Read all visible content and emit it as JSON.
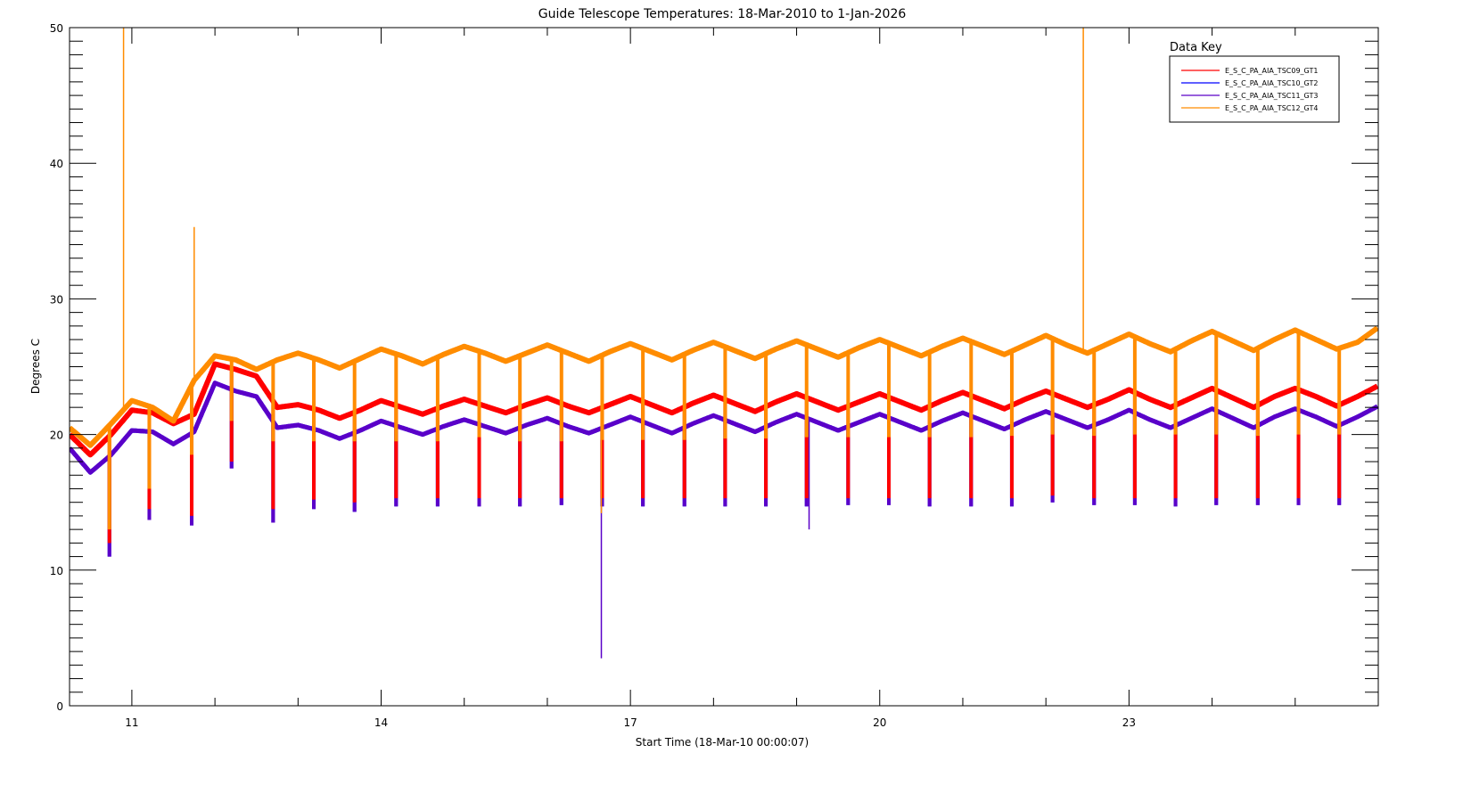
{
  "chart_data": {
    "type": "line",
    "title": "Guide Telescope Temperatures: 18-Mar-2010 to 1-Jan-2026",
    "xlabel": "Start Time (18-Mar-10 00:00:07)",
    "ylabel": "Degrees C",
    "xlim": [
      10.25,
      26.0
    ],
    "ylim": [
      0,
      50
    ],
    "x_ticks": [
      11,
      14,
      17,
      20,
      23
    ],
    "x_tick_labels": [
      "11",
      "14",
      "17",
      "20",
      "23"
    ],
    "y_ticks": [
      0,
      10,
      20,
      30,
      40,
      50
    ],
    "y_tick_labels": [
      "0",
      "10",
      "20",
      "30",
      "40",
      "50"
    ],
    "grid": false,
    "legend": {
      "title": "Data Key",
      "placement": "top-right"
    },
    "x": [
      10.25,
      10.5,
      10.75,
      11.0,
      11.25,
      11.5,
      11.75,
      12.0,
      12.25,
      12.5,
      12.75,
      13.0,
      13.25,
      13.5,
      13.75,
      14.0,
      14.25,
      14.5,
      14.75,
      15.0,
      15.25,
      15.5,
      15.75,
      16.0,
      16.25,
      16.5,
      16.75,
      17.0,
      17.25,
      17.5,
      17.75,
      18.0,
      18.25,
      18.5,
      18.75,
      19.0,
      19.25,
      19.5,
      19.75,
      20.0,
      20.25,
      20.5,
      20.75,
      21.0,
      21.25,
      21.5,
      21.75,
      22.0,
      22.25,
      22.5,
      22.75,
      23.0,
      23.25,
      23.5,
      23.75,
      24.0,
      24.25,
      24.5,
      24.75,
      25.0,
      25.25,
      25.5,
      25.75,
      26.0
    ],
    "series": [
      {
        "name": "E_S_C_PA_AIA_TSC10_GT2",
        "color": "#0000ff",
        "values": [
          19.0,
          17.2,
          18.5,
          20.3,
          20.2,
          19.3,
          20.2,
          23.8,
          23.2,
          22.8,
          20.5,
          20.7,
          20.3,
          19.7,
          20.3,
          21.0,
          20.5,
          20.0,
          20.6,
          21.1,
          20.6,
          20.1,
          20.7,
          21.2,
          20.6,
          20.1,
          20.7,
          21.3,
          20.7,
          20.1,
          20.8,
          21.4,
          20.8,
          20.2,
          20.9,
          21.5,
          20.9,
          20.3,
          20.9,
          21.5,
          20.9,
          20.3,
          21.0,
          21.6,
          21.0,
          20.4,
          21.1,
          21.7,
          21.1,
          20.5,
          21.1,
          21.8,
          21.1,
          20.5,
          21.2,
          21.9,
          21.2,
          20.5,
          21.3,
          21.9,
          21.3,
          20.6,
          21.3,
          22.1
        ]
      },
      {
        "name": "E_S_C_PA_AIA_TSC11_GT3",
        "color": "#5a00c8",
        "values": [
          19.0,
          17.2,
          18.5,
          20.3,
          20.2,
          19.3,
          20.2,
          23.8,
          23.2,
          22.8,
          20.5,
          20.7,
          20.3,
          19.7,
          20.3,
          21.0,
          20.5,
          20.0,
          20.6,
          21.1,
          20.6,
          20.1,
          20.7,
          21.2,
          20.6,
          20.1,
          20.7,
          21.3,
          20.7,
          20.1,
          20.8,
          21.4,
          20.8,
          20.2,
          20.9,
          21.5,
          20.9,
          20.3,
          20.9,
          21.5,
          20.9,
          20.3,
          21.0,
          21.6,
          21.0,
          20.4,
          21.1,
          21.7,
          21.1,
          20.5,
          21.1,
          21.8,
          21.1,
          20.5,
          21.2,
          21.9,
          21.2,
          20.5,
          21.3,
          21.9,
          21.3,
          20.6,
          21.3,
          22.1
        ]
      },
      {
        "name": "E_S_C_PA_AIA_TSC09_GT1",
        "color": "#ff0000",
        "values": [
          20.0,
          18.5,
          20.0,
          21.8,
          21.6,
          20.8,
          21.5,
          25.2,
          24.8,
          24.3,
          22.0,
          22.2,
          21.8,
          21.2,
          21.8,
          22.5,
          22.0,
          21.5,
          22.1,
          22.6,
          22.1,
          21.6,
          22.2,
          22.7,
          22.1,
          21.6,
          22.2,
          22.8,
          22.2,
          21.6,
          22.3,
          22.9,
          22.3,
          21.7,
          22.4,
          23.0,
          22.4,
          21.8,
          22.4,
          23.0,
          22.4,
          21.8,
          22.5,
          23.1,
          22.5,
          21.9,
          22.6,
          23.2,
          22.6,
          22.0,
          22.6,
          23.3,
          22.6,
          22.0,
          22.7,
          23.4,
          22.7,
          22.0,
          22.8,
          23.4,
          22.8,
          22.1,
          22.8,
          23.6
        ]
      },
      {
        "name": "E_S_C_PA_AIA_TSC12_GT4",
        "color": "#ff8c00",
        "values": [
          20.5,
          19.2,
          20.8,
          22.5,
          22.0,
          21.0,
          24.0,
          25.8,
          25.5,
          24.8,
          25.5,
          26.0,
          25.5,
          24.9,
          25.6,
          26.3,
          25.8,
          25.2,
          25.9,
          26.5,
          26.0,
          25.4,
          26.0,
          26.6,
          26.0,
          25.4,
          26.1,
          26.7,
          26.1,
          25.5,
          26.2,
          26.8,
          26.2,
          25.6,
          26.3,
          26.9,
          26.3,
          25.7,
          26.4,
          27.0,
          26.4,
          25.8,
          26.5,
          27.1,
          26.5,
          25.9,
          26.6,
          27.3,
          26.6,
          26.0,
          26.7,
          27.4,
          26.7,
          26.1,
          26.9,
          27.6,
          26.9,
          26.2,
          27.0,
          27.7,
          27.0,
          26.3,
          26.8,
          27.9
        ]
      }
    ],
    "legend_order": [
      "E_S_C_PA_AIA_TSC09_GT1",
      "E_S_C_PA_AIA_TSC10_GT2",
      "E_S_C_PA_AIA_TSC11_GT3",
      "E_S_C_PA_AIA_TSC12_GT4"
    ],
    "dips": {
      "x": [
        10.73,
        11.21,
        11.72,
        12.2,
        12.7,
        13.19,
        13.68,
        14.18,
        14.68,
        15.18,
        15.67,
        16.17,
        16.66,
        17.15,
        17.65,
        18.14,
        18.63,
        19.12,
        19.62,
        20.11,
        20.6,
        21.1,
        21.59,
        22.08,
        22.58,
        23.07,
        23.56,
        24.05,
        24.55,
        25.04,
        25.53
      ],
      "min_gt2_gt3": [
        11.0,
        13.7,
        13.3,
        17.5,
        13.5,
        14.5,
        14.3,
        14.7,
        14.7,
        14.7,
        14.7,
        14.8,
        14.7,
        14.7,
        14.7,
        14.7,
        14.7,
        14.7,
        14.8,
        14.8,
        14.7,
        14.7,
        14.7,
        15.0,
        14.8,
        14.8,
        14.7,
        14.8,
        14.8,
        14.8,
        14.8
      ],
      "min_gt1": [
        12.0,
        14.5,
        14.0,
        18.0,
        14.5,
        15.2,
        15.0,
        15.3,
        15.3,
        15.3,
        15.3,
        15.3,
        15.3,
        15.3,
        15.3,
        15.3,
        15.3,
        15.3,
        15.3,
        15.3,
        15.3,
        15.3,
        15.3,
        15.5,
        15.3,
        15.3,
        15.3,
        15.3,
        15.3,
        15.3,
        15.3
      ],
      "min_gt4": [
        13.0,
        16.0,
        18.5,
        21.0,
        19.5,
        19.5,
        19.5,
        19.5,
        19.5,
        19.8,
        19.5,
        19.5,
        19.6,
        19.6,
        19.6,
        19.7,
        19.7,
        19.8,
        19.8,
        19.8,
        19.8,
        19.8,
        19.9,
        20.0,
        19.9,
        20.0,
        20.0,
        20.0,
        19.9,
        20.0,
        20.0
      ]
    },
    "spikes": [
      {
        "series": "E_S_C_PA_AIA_TSC12_GT4",
        "x": 10.9,
        "value": 50
      },
      {
        "series": "E_S_C_PA_AIA_TSC12_GT4",
        "x": 11.75,
        "value": 35.3
      },
      {
        "series": "E_S_C_PA_AIA_TSC12_GT4",
        "x": 22.45,
        "value": 50
      },
      {
        "series": "E_S_C_PA_AIA_TSC11_GT3",
        "x": 16.65,
        "value": 3.5
      },
      {
        "series": "E_S_C_PA_AIA_TSC11_GT3",
        "x": 19.15,
        "value": 13.0
      },
      {
        "series": "E_S_C_PA_AIA_TSC12_GT4",
        "x": 16.65,
        "value": 14.2
      }
    ]
  }
}
